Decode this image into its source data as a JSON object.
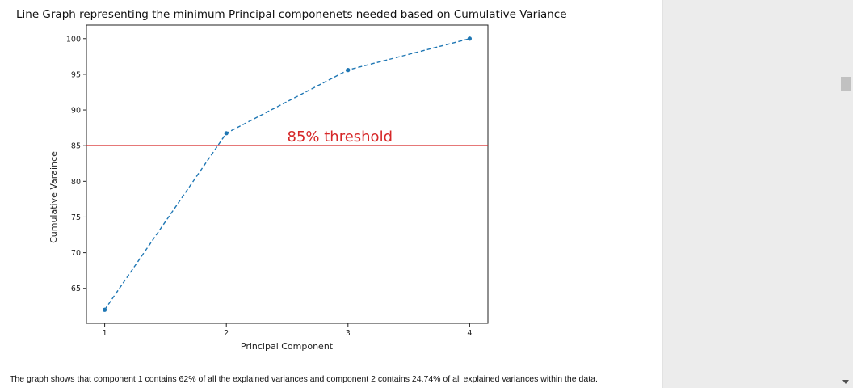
{
  "chart_data": {
    "type": "line",
    "title": "Line Graph representing the minimum Principal componenets needed based on Cumulative Variance",
    "xlabel": "Principal Component",
    "ylabel": "Cumulative Varaince",
    "x": [
      1,
      2,
      3,
      4
    ],
    "y": [
      62.0,
      86.74,
      95.6,
      100.0
    ],
    "xticks": [
      "1",
      "2",
      "3",
      "4"
    ],
    "yticks": [
      "65",
      "70",
      "75",
      "80",
      "85",
      "90",
      "95",
      "100"
    ],
    "xlim": [
      0.85,
      4.15
    ],
    "ylim": [
      60.1,
      101.9
    ],
    "grid": false,
    "line_color": "#1f77b4",
    "line_style": "dashed",
    "threshold": {
      "value": 85,
      "label": "85% threshold",
      "color": "#d62728"
    }
  },
  "caption": "The graph shows that component 1 contains 62% of all the explained variances and component 2 contains 24.74% of all explained variances within the data."
}
